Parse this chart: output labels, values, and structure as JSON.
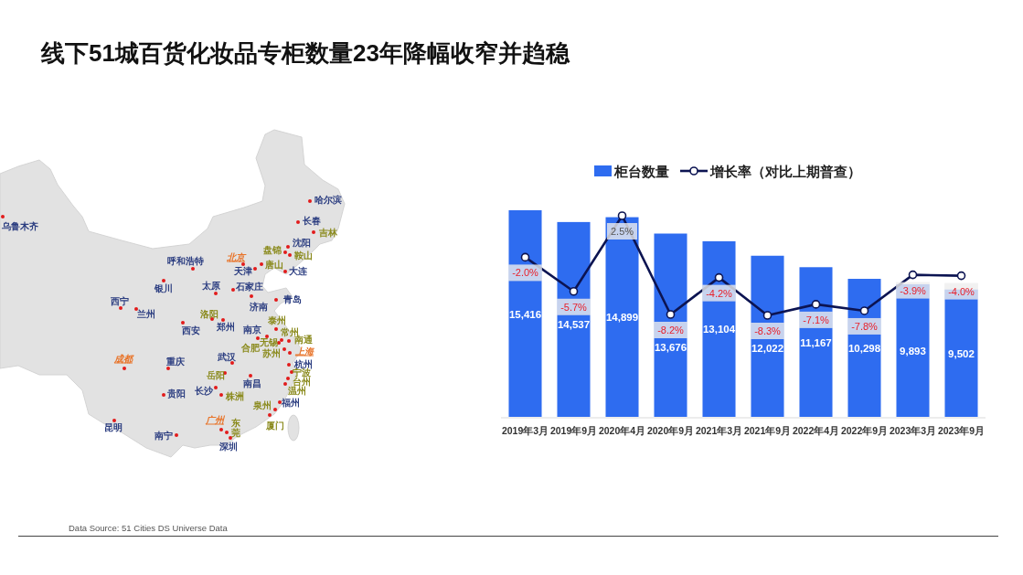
{
  "chart_data": [
    {
      "type": "other",
      "annotations": [
        "乌鲁木齐",
        "哈尔滨",
        "长春",
        "吉林",
        "沈阳",
        "盘锦",
        "鞍山",
        "北京",
        "唐山",
        "天津",
        "大连",
        "呼和浩特",
        "银川",
        "太原",
        "石家庄",
        "济南",
        "青岛",
        "西宁",
        "兰州",
        "洛阳",
        "郑州",
        "西安",
        "南京",
        "泰州",
        "常州",
        "南通",
        "无锡",
        "合肥",
        "苏州",
        "上海",
        "成都",
        "重庆",
        "武汉",
        "杭州",
        "岳阳",
        "南昌",
        "宁波",
        "台州",
        "温州",
        "贵阳",
        "长沙",
        "株洲",
        "泉州",
        "福州",
        "厦门",
        "广州",
        "东莞",
        "深圳",
        "昆明",
        "南宁"
      ]
    },
    {
      "type": "bar",
      "title": "线下51城百货化妆品专柜数量23年降幅收窄并趋稳",
      "categories": [
        "2019年3月",
        "2019年9月",
        "2020年4月",
        "2020年9月",
        "2021年3月",
        "2021年9月",
        "2022年4月",
        "2022年9月",
        "2023年3月",
        "2023年9月"
      ],
      "series": [
        {
          "name": "柜台数量",
          "type": "bar",
          "color": "#2e6cf0",
          "values": [
            15416,
            14537,
            14899,
            13676,
            13104,
            12022,
            11167,
            10298,
            9893,
            9502
          ],
          "value_labels": [
            "15,416",
            "14,537",
            "14,899",
            "13,676",
            "13,104",
            "12,022",
            "11,167",
            "10,298",
            "9,893",
            "9,502"
          ]
        },
        {
          "name": "增长率（对比上期普查）",
          "type": "line",
          "axis": "y2",
          "color": "#0c1452",
          "marker": "circle",
          "values": [
            -2.0,
            -5.7,
            2.5,
            -8.2,
            -4.2,
            -8.3,
            -7.1,
            -7.8,
            -3.9,
            -4.0
          ],
          "value_labels": [
            "-2.0%",
            "-5.7%",
            "2.5%",
            "-8.2%",
            "-4.2%",
            "-8.3%",
            "-7.1%",
            "-7.8%",
            "-3.9%",
            "-4.0%"
          ]
        }
      ],
      "tick_labels": "x",
      "legend": "top",
      "annotations": [
        "Data Source: 51 Cities DS Universe Data"
      ]
    }
  ]
}
